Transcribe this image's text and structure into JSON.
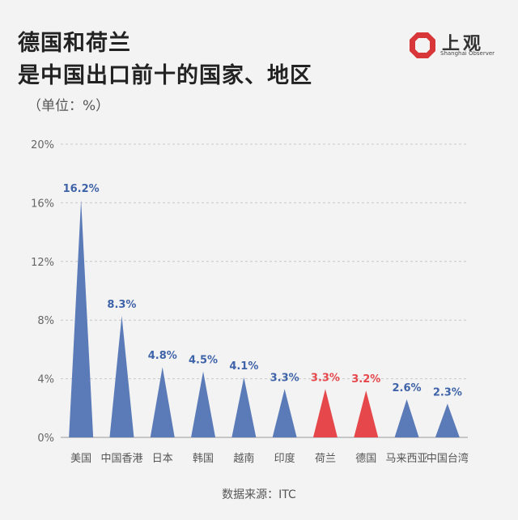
{
  "header": {
    "title_line1": "德国和荷兰",
    "title_line2": "是中国出口前十的国家、地区",
    "unit": "（单位：%）"
  },
  "logo": {
    "name": "上观",
    "subtitle": "Shanghai Observer",
    "color": "#d9363a"
  },
  "source": "数据来源：ITC",
  "chart_data": {
    "type": "bar",
    "categories": [
      "美国",
      "中国香港",
      "日本",
      "韩国",
      "越南",
      "印度",
      "荷兰",
      "德国",
      "马来西亚",
      "中国台湾"
    ],
    "values": [
      16.2,
      8.3,
      4.8,
      4.5,
      4.1,
      3.3,
      3.3,
      3.2,
      2.6,
      2.3
    ],
    "value_labels": [
      "16.2%",
      "8.3%",
      "4.8%",
      "4.5%",
      "4.1%",
      "3.3%",
      "3.3%",
      "3.2%",
      "2.6%",
      "2.3%"
    ],
    "highlight": [
      "荷兰",
      "德国"
    ],
    "colors": {
      "default": "#5b7bb8",
      "highlight": "#e5474b",
      "label_default": "#3f63a8",
      "label_highlight": "#e5474b"
    },
    "ylim": [
      0,
      20
    ],
    "yticks": [
      0,
      4,
      8,
      12,
      16,
      20
    ],
    "ytick_labels": [
      "0%",
      "4%",
      "8%",
      "12%",
      "16%",
      "20%"
    ],
    "grid": true
  }
}
